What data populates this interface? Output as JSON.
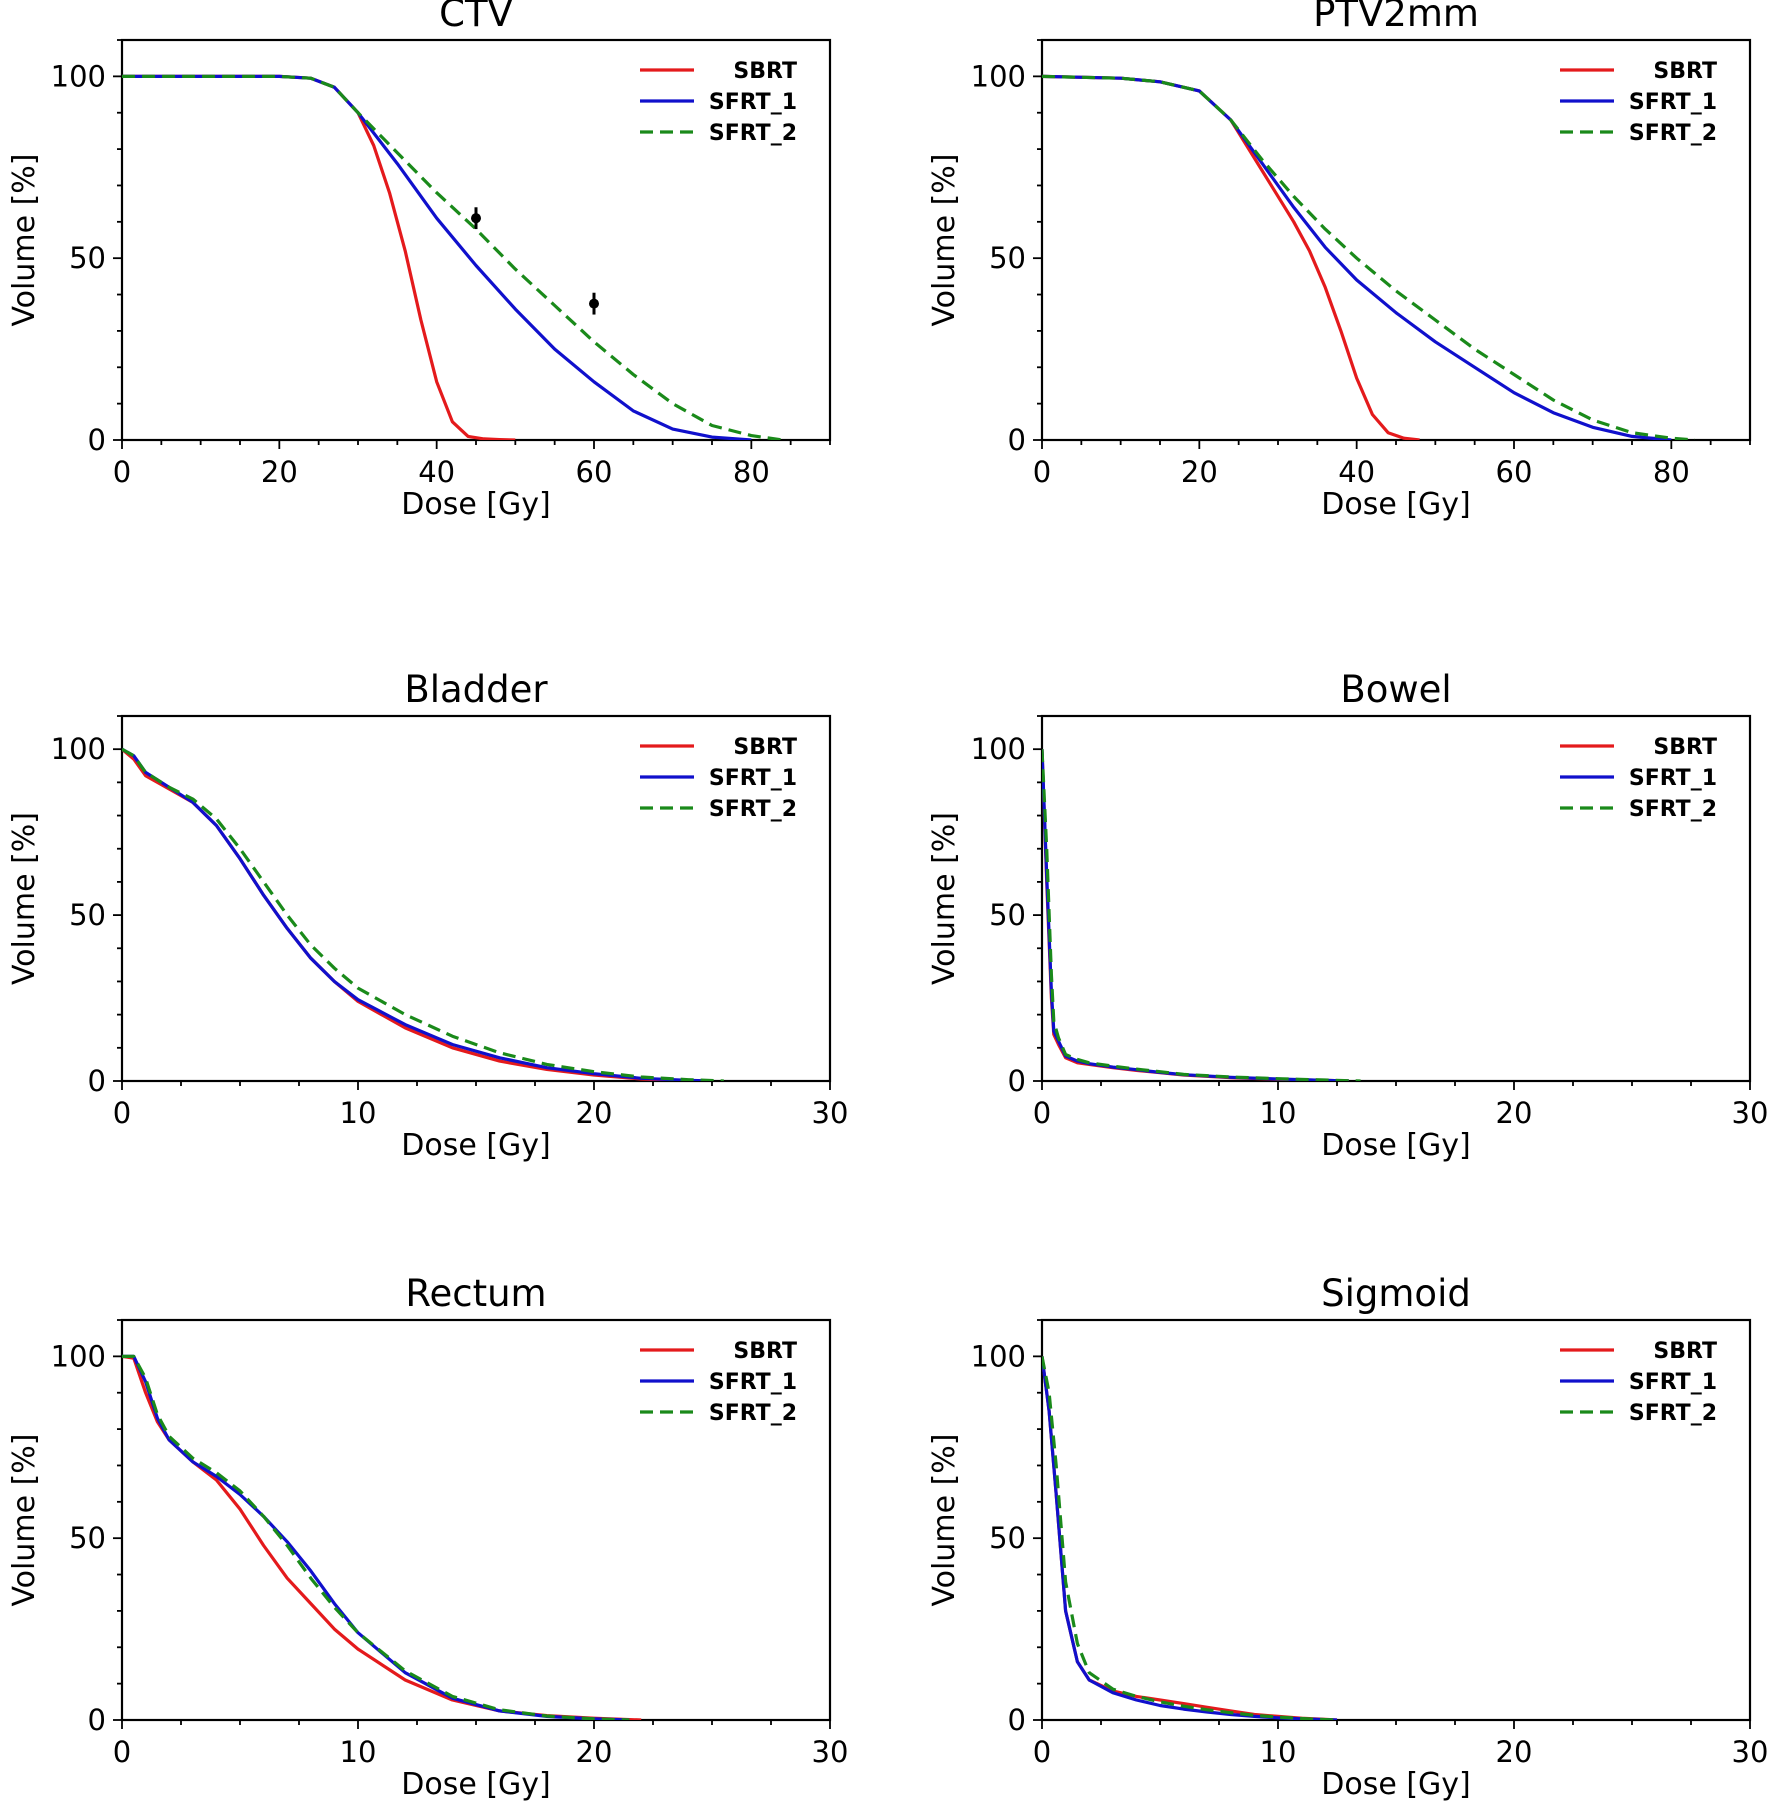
{
  "chart_data": [
    {
      "type": "line",
      "title": "CTV",
      "xlabel": "Dose [Gy]",
      "ylabel": "Volume [%]",
      "xlim": [
        0,
        90
      ],
      "ylim": [
        0,
        110
      ],
      "xticks": [
        0,
        20,
        40,
        60,
        80
      ],
      "yticks": [
        0,
        50,
        100
      ],
      "legend": "top-right",
      "series": [
        {
          "name": "SBRT",
          "color": "#e41a1c",
          "dash": "solid",
          "x": [
            0,
            20,
            24,
            27,
            30,
            32,
            34,
            36,
            38,
            40,
            42,
            44,
            46,
            48,
            50
          ],
          "y": [
            100,
            100,
            99.5,
            97,
            90,
            81,
            68,
            52,
            33,
            16,
            5,
            1,
            0.3,
            0.1,
            0
          ]
        },
        {
          "name": "SFRT_1",
          "color": "#1010cc",
          "dash": "solid",
          "x": [
            0,
            20,
            24,
            27,
            30,
            35,
            40,
            45,
            50,
            55,
            60,
            65,
            70,
            75,
            80
          ],
          "y": [
            100,
            100,
            99.5,
            97,
            90,
            76,
            61,
            48,
            36,
            25,
            16,
            8,
            3,
            0.8,
            0
          ]
        },
        {
          "name": "SFRT_2",
          "color": "#1a8a1a",
          "dash": "dashed",
          "x": [
            0,
            20,
            24,
            27,
            30,
            35,
            40,
            45,
            50,
            55,
            60,
            65,
            70,
            75,
            80,
            84
          ],
          "y": [
            100,
            100,
            99.5,
            97,
            90,
            79,
            68,
            58,
            47,
            37,
            27,
            18,
            10,
            4,
            1.2,
            0
          ]
        }
      ],
      "markers": [
        {
          "x": 45,
          "y": 61,
          "err": 3
        },
        {
          "x": 60,
          "y": 37.5,
          "err": 3
        }
      ]
    },
    {
      "type": "line",
      "title": "PTV2mm",
      "xlabel": "Dose [Gy]",
      "ylabel": "Volume [%]",
      "xlim": [
        0,
        90
      ],
      "ylim": [
        0,
        110
      ],
      "xticks": [
        0,
        20,
        40,
        60,
        80
      ],
      "yticks": [
        0,
        50,
        100
      ],
      "legend": "top-right",
      "series": [
        {
          "name": "SBRT",
          "color": "#e41a1c",
          "dash": "solid",
          "x": [
            0,
            10,
            15,
            20,
            24,
            28,
            32,
            34,
            36,
            38,
            40,
            42,
            44,
            46,
            48
          ],
          "y": [
            100,
            99.5,
            98.5,
            96,
            88,
            74,
            60,
            52,
            42,
            30,
            17,
            7,
            2,
            0.5,
            0
          ]
        },
        {
          "name": "SFRT_1",
          "color": "#1010cc",
          "dash": "solid",
          "x": [
            0,
            10,
            15,
            20,
            24,
            28,
            32,
            36,
            40,
            45,
            50,
            55,
            60,
            65,
            70,
            75,
            80
          ],
          "y": [
            100,
            99.5,
            98.5,
            96,
            88,
            76,
            64,
            53,
            44,
            35,
            27,
            20,
            13,
            7.5,
            3.5,
            1,
            0
          ]
        },
        {
          "name": "SFRT_2",
          "color": "#1a8a1a",
          "dash": "dashed",
          "x": [
            0,
            10,
            15,
            20,
            24,
            28,
            32,
            36,
            40,
            45,
            50,
            55,
            60,
            65,
            70,
            75,
            80,
            83
          ],
          "y": [
            100,
            99.5,
            98.5,
            96,
            88,
            77,
            67,
            58,
            50,
            41,
            33,
            25,
            18,
            11,
            5.5,
            2,
            0.5,
            0
          ]
        }
      ]
    },
    {
      "type": "line",
      "title": "Bladder",
      "xlabel": "Dose [Gy]",
      "ylabel": "Volume [%]",
      "xlim": [
        0,
        30
      ],
      "ylim": [
        0,
        110
      ],
      "xticks": [
        0,
        10,
        20,
        30
      ],
      "yticks": [
        0,
        50,
        100
      ],
      "legend": "top-right",
      "series": [
        {
          "name": "SBRT",
          "color": "#e41a1c",
          "dash": "solid",
          "x": [
            0,
            0.5,
            1,
            2,
            3,
            4,
            5,
            6,
            7,
            8,
            9,
            10,
            12,
            14,
            16,
            18,
            20,
            22,
            24
          ],
          "y": [
            100,
            97,
            92,
            88,
            84,
            77,
            67,
            56,
            46,
            37,
            30,
            24,
            16,
            10,
            6,
            3.5,
            1.8,
            0.6,
            0
          ]
        },
        {
          "name": "SFRT_1",
          "color": "#1010cc",
          "dash": "solid",
          "x": [
            0,
            0.5,
            1,
            2,
            3,
            4,
            5,
            6,
            7,
            8,
            9,
            10,
            12,
            14,
            16,
            18,
            20,
            22,
            24,
            25
          ],
          "y": [
            100,
            98,
            93,
            88.5,
            84,
            77,
            67,
            56,
            46,
            37,
            30,
            24.5,
            17,
            11,
            7,
            4,
            2.2,
            0.8,
            0.2,
            0
          ]
        },
        {
          "name": "SFRT_2",
          "color": "#1a8a1a",
          "dash": "dashed",
          "x": [
            0,
            0.5,
            1,
            2,
            3,
            4,
            5,
            6,
            7,
            8,
            9,
            10,
            12,
            14,
            16,
            18,
            20,
            22,
            24,
            25.5
          ],
          "y": [
            100,
            98,
            93,
            88.5,
            85,
            79,
            70,
            60,
            50,
            41,
            34,
            28,
            20,
            13.5,
            8.5,
            5,
            2.8,
            1.2,
            0.4,
            0
          ]
        }
      ]
    },
    {
      "type": "line",
      "title": "Bowel",
      "xlabel": "Dose [Gy]",
      "ylabel": "Volume [%]",
      "xlim": [
        0,
        30
      ],
      "ylim": [
        0,
        110
      ],
      "xticks": [
        0,
        10,
        20,
        30
      ],
      "yticks": [
        0,
        50,
        100
      ],
      "legend": "top-right",
      "series": [
        {
          "name": "SBRT",
          "color": "#e41a1c",
          "dash": "solid",
          "x": [
            0,
            0.2,
            0.4,
            0.5,
            0.7,
            1,
            1.5,
            2,
            3,
            4,
            5,
            6,
            8,
            10,
            12,
            13
          ],
          "y": [
            100,
            60,
            25,
            14,
            11,
            7,
            5.5,
            5,
            4,
            3.2,
            2.5,
            1.8,
            1,
            0.5,
            0.2,
            0
          ]
        },
        {
          "name": "SFRT_1",
          "color": "#1010cc",
          "dash": "solid",
          "x": [
            0,
            0.2,
            0.4,
            0.5,
            0.7,
            1,
            1.5,
            2,
            3,
            4,
            5,
            6,
            8,
            10,
            12,
            13
          ],
          "y": [
            100,
            62,
            27,
            15,
            12,
            7.5,
            6,
            5.2,
            4.2,
            3.4,
            2.6,
            1.9,
            1.1,
            0.6,
            0.2,
            0
          ]
        },
        {
          "name": "SFRT_2",
          "color": "#1a8a1a",
          "dash": "dashed",
          "x": [
            0,
            0.2,
            0.4,
            0.5,
            0.7,
            1,
            1.5,
            2,
            3,
            4,
            5,
            6,
            8,
            10,
            12,
            13.5
          ],
          "y": [
            100,
            70,
            32,
            18,
            13,
            8,
            6.5,
            5.5,
            4.5,
            3.6,
            2.8,
            2,
            1.2,
            0.7,
            0.3,
            0
          ]
        }
      ]
    },
    {
      "type": "line",
      "title": "Rectum",
      "xlabel": "Dose [Gy]",
      "ylabel": "Volume [%]",
      "xlim": [
        0,
        30
      ],
      "ylim": [
        0,
        110
      ],
      "xticks": [
        0,
        10,
        20,
        30
      ],
      "yticks": [
        0,
        50,
        100
      ],
      "legend": "top-right",
      "series": [
        {
          "name": "SBRT",
          "color": "#e41a1c",
          "dash": "solid",
          "x": [
            0,
            0.5,
            1,
            1.5,
            2,
            3,
            4,
            5,
            6,
            7,
            8,
            9,
            10,
            12,
            14,
            16,
            18,
            20,
            22
          ],
          "y": [
            100,
            99.5,
            90,
            82,
            77,
            71,
            66,
            58,
            48,
            39,
            32,
            25,
            19.5,
            11,
            5.5,
            2.5,
            1.2,
            0.5,
            0
          ]
        },
        {
          "name": "SFRT_1",
          "color": "#1010cc",
          "dash": "solid",
          "x": [
            0,
            0.5,
            1,
            1.5,
            2,
            3,
            4,
            5,
            6,
            7,
            8,
            9,
            10,
            12,
            14,
            16,
            18,
            20,
            21.5
          ],
          "y": [
            100,
            100,
            93,
            83,
            77,
            71,
            67,
            62,
            56,
            49,
            41,
            32,
            24,
            13,
            6,
            2.5,
            1,
            0.3,
            0
          ]
        },
        {
          "name": "SFRT_2",
          "color": "#1a8a1a",
          "dash": "dashed",
          "x": [
            0,
            0.5,
            1,
            1.5,
            2,
            3,
            4,
            5,
            6,
            7,
            8,
            9,
            10,
            12,
            14,
            16,
            18,
            20,
            21.5
          ],
          "y": [
            100,
            100,
            94,
            84,
            78,
            72,
            68,
            63,
            56,
            48,
            39,
            31,
            24,
            13.5,
            6.5,
            2.8,
            1.1,
            0.3,
            0
          ]
        }
      ]
    },
    {
      "type": "line",
      "title": "Sigmoid",
      "xlabel": "Dose [Gy]",
      "ylabel": "Volume [%]",
      "xlim": [
        0,
        30
      ],
      "ylim": [
        0,
        110
      ],
      "xticks": [
        0,
        10,
        20,
        30
      ],
      "yticks": [
        0,
        50,
        100
      ],
      "legend": "top-right",
      "series": [
        {
          "name": "SBRT",
          "color": "#e41a1c",
          "dash": "solid",
          "x": [
            0,
            0.3,
            0.6,
            1,
            1.5,
            2,
            3,
            4,
            5,
            6,
            7,
            8,
            9,
            10,
            11,
            12,
            12.5
          ],
          "y": [
            100,
            85,
            62,
            30,
            16,
            11,
            8,
            6.5,
            5.5,
            4.5,
            3.5,
            2.5,
            1.5,
            1,
            0.5,
            0.2,
            0
          ]
        },
        {
          "name": "SFRT_1",
          "color": "#1010cc",
          "dash": "solid",
          "x": [
            0,
            0.3,
            0.6,
            1,
            1.5,
            2,
            3,
            4,
            5,
            6,
            7,
            8,
            9,
            10,
            11,
            12,
            12.5
          ],
          "y": [
            100,
            85,
            62,
            30,
            16,
            11,
            7.5,
            5.5,
            4,
            3,
            2.2,
            1.5,
            1,
            0.6,
            0.3,
            0.1,
            0
          ]
        },
        {
          "name": "SFRT_2",
          "color": "#1a8a1a",
          "dash": "dashed",
          "x": [
            0,
            0.3,
            0.6,
            1,
            1.5,
            2,
            3,
            4,
            5,
            6,
            7,
            8,
            9,
            10,
            11,
            12,
            12.5
          ],
          "y": [
            100,
            90,
            70,
            38,
            21,
            13,
            8.5,
            6.5,
            5,
            3.8,
            2.8,
            2,
            1.3,
            0.8,
            0.4,
            0.1,
            0
          ]
        }
      ]
    }
  ]
}
